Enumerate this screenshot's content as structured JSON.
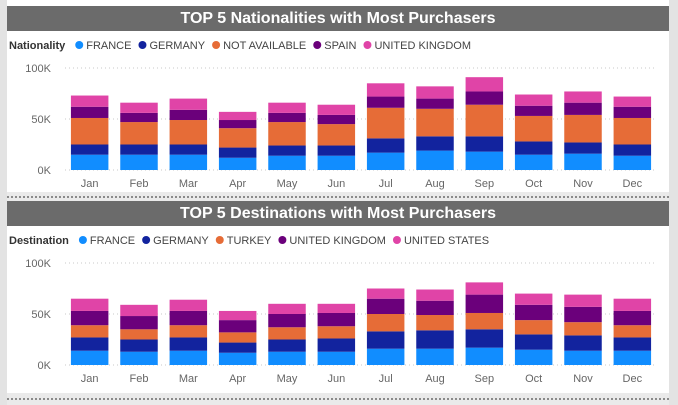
{
  "charts": [
    {
      "title": "TOP 5 Nationalities with Most Purchasers",
      "legend_title": "Nationality",
      "series_names": [
        "FRANCE",
        "GERMANY",
        "NOT AVAILABLE",
        "SPAIN",
        "UNITED KINGDOM"
      ]
    },
    {
      "title": "TOP 5 Destinations with Most Purchasers",
      "legend_title": "Destination",
      "series_names": [
        "FRANCE",
        "GERMANY",
        "TURKEY",
        "UNITED KINGDOM",
        "UNITED STATES"
      ]
    }
  ],
  "chart_data": [
    {
      "type": "bar",
      "stacked": true,
      "title": "TOP 5 Nationalities with Most Purchasers",
      "legend_title": "Nationality",
      "legend_position": "top-left",
      "grid": true,
      "categories": [
        "Jan",
        "Feb",
        "Mar",
        "Apr",
        "May",
        "Jun",
        "Jul",
        "Aug",
        "Sep",
        "Oct",
        "Nov",
        "Dec"
      ],
      "ylim": [
        0,
        100000
      ],
      "y_ticks": [
        "0K",
        "50K",
        "100K"
      ],
      "series": [
        {
          "name": "FRANCE",
          "color": "#118DFF",
          "values": [
            15000,
            15000,
            15000,
            12000,
            14000,
            14000,
            17000,
            19000,
            18000,
            15000,
            16000,
            14000
          ]
        },
        {
          "name": "GERMANY",
          "color": "#12239E",
          "values": [
            10000,
            10000,
            10000,
            10000,
            10000,
            10000,
            14000,
            14000,
            15000,
            13000,
            11000,
            11000
          ]
        },
        {
          "name": "NOT AVAILABLE",
          "color": "#E66C37",
          "values": [
            26000,
            22000,
            24000,
            19000,
            23000,
            21000,
            30000,
            27000,
            31000,
            25000,
            27000,
            26000
          ]
        },
        {
          "name": "SPAIN",
          "color": "#6B007B",
          "values": [
            11000,
            9000,
            10000,
            8000,
            9000,
            9000,
            11000,
            10000,
            13000,
            10000,
            12000,
            11000
          ]
        },
        {
          "name": "UNITED KINGDOM",
          "color": "#E044A7",
          "values": [
            11000,
            10000,
            11000,
            8000,
            10000,
            10000,
            13000,
            12000,
            14000,
            11000,
            11000,
            10000
          ]
        }
      ]
    },
    {
      "type": "bar",
      "stacked": true,
      "title": "TOP 5 Destinations with Most Purchasers",
      "legend_title": "Destination",
      "legend_position": "top-left",
      "grid": true,
      "categories": [
        "Jan",
        "Feb",
        "Mar",
        "Apr",
        "May",
        "Jun",
        "Jul",
        "Aug",
        "Sep",
        "Oct",
        "Nov",
        "Dec"
      ],
      "ylim": [
        0,
        100000
      ],
      "y_ticks": [
        "0K",
        "50K",
        "100K"
      ],
      "series": [
        {
          "name": "FRANCE",
          "color": "#118DFF",
          "values": [
            14000,
            13000,
            14000,
            12000,
            13000,
            13000,
            16000,
            16000,
            17000,
            15000,
            14000,
            14000
          ]
        },
        {
          "name": "GERMANY",
          "color": "#12239E",
          "values": [
            13000,
            12000,
            13000,
            10000,
            12000,
            13000,
            17000,
            18000,
            18000,
            15000,
            15000,
            13000
          ]
        },
        {
          "name": "TURKEY",
          "color": "#E66C37",
          "values": [
            12000,
            10000,
            12000,
            10000,
            12000,
            12000,
            17000,
            15000,
            16000,
            14000,
            13000,
            12000
          ]
        },
        {
          "name": "UNITED KINGDOM",
          "color": "#6B007B",
          "values": [
            14000,
            13000,
            14000,
            12000,
            13000,
            13000,
            15000,
            14000,
            18000,
            15000,
            15000,
            14000
          ]
        },
        {
          "name": "UNITED STATES",
          "color": "#E044A7",
          "values": [
            12000,
            11000,
            11000,
            9000,
            10000,
            9000,
            10000,
            11000,
            12000,
            11000,
            12000,
            12000
          ]
        }
      ]
    }
  ]
}
